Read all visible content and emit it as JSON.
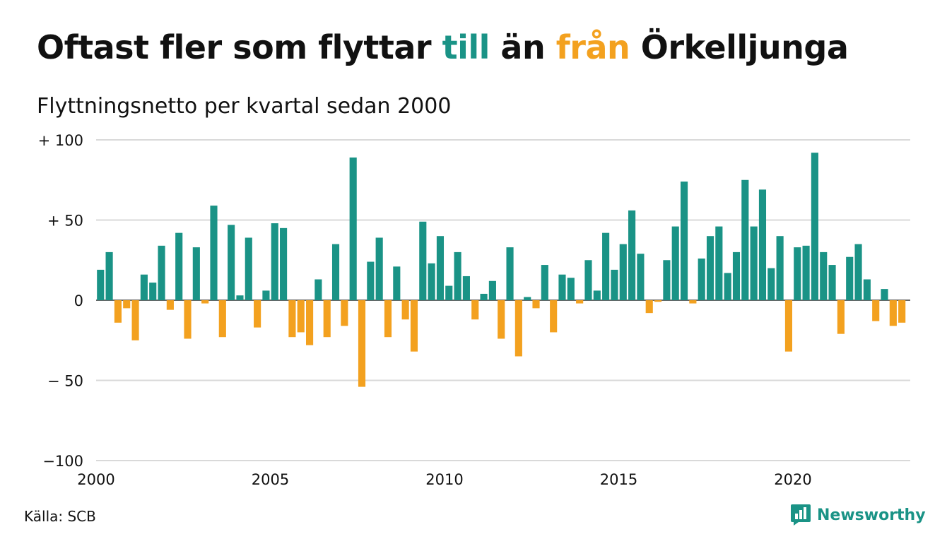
{
  "title": {
    "part1": "Oftast fler som flyttar ",
    "word_till": "till",
    "part2": " än ",
    "word_fran": "från",
    "part3": " Örkelljunga"
  },
  "subtitle": "Flyttningsnetto per kvartal sedan 2000",
  "source": "Källa: SCB",
  "brand": {
    "name": "Newsworthy",
    "icon": "newsworthy-chart-bubble-icon"
  },
  "colors": {
    "positive": "#1a9386",
    "negative": "#f3a11f",
    "grid": "#d9d9d9",
    "text": "#111111"
  },
  "chart_data": {
    "type": "bar",
    "title": "Oftast fler som flyttar till än från Örkelljunga",
    "subtitle": "Flyttningsnetto per kvartal sedan 2000",
    "xlabel": "",
    "ylabel": "",
    "ylim": [
      -100,
      100
    ],
    "yticks": [
      {
        "value": 100,
        "label": "+ 100"
      },
      {
        "value": 50,
        "label": "+  50"
      },
      {
        "value": 0,
        "label": "0"
      },
      {
        "value": -50,
        "label": "− 50"
      },
      {
        "value": -100,
        "label": "−100"
      }
    ],
    "xticks": [
      "2000",
      "2005",
      "2010",
      "2015",
      "2020"
    ],
    "start_year": 2000,
    "periods_per_year": 4,
    "grid": true,
    "legend": "none",
    "series": [
      {
        "values": [
          19,
          30,
          -14,
          -5,
          -25,
          16,
          11,
          34,
          -6,
          42,
          -24,
          33,
          -2,
          59,
          -23,
          47,
          3,
          39,
          -17,
          6,
          48,
          45,
          -23,
          -20,
          -28,
          13,
          -23,
          35,
          -16,
          89,
          -54,
          24,
          39,
          -23,
          21,
          -12,
          -32,
          49,
          23,
          40,
          9,
          30,
          15,
          -12,
          4,
          12,
          -24,
          33,
          -35,
          2,
          -5,
          22,
          -20,
          16,
          14,
          -2,
          25,
          6,
          42,
          19,
          35,
          56,
          29,
          -8,
          -1,
          25,
          46,
          74,
          -2,
          26,
          40,
          46,
          17,
          30,
          75,
          46,
          69,
          20,
          40,
          -32,
          33,
          34,
          92,
          30,
          22,
          -21,
          27,
          35,
          13,
          -13,
          7,
          -16,
          -14
        ]
      }
    ]
  }
}
